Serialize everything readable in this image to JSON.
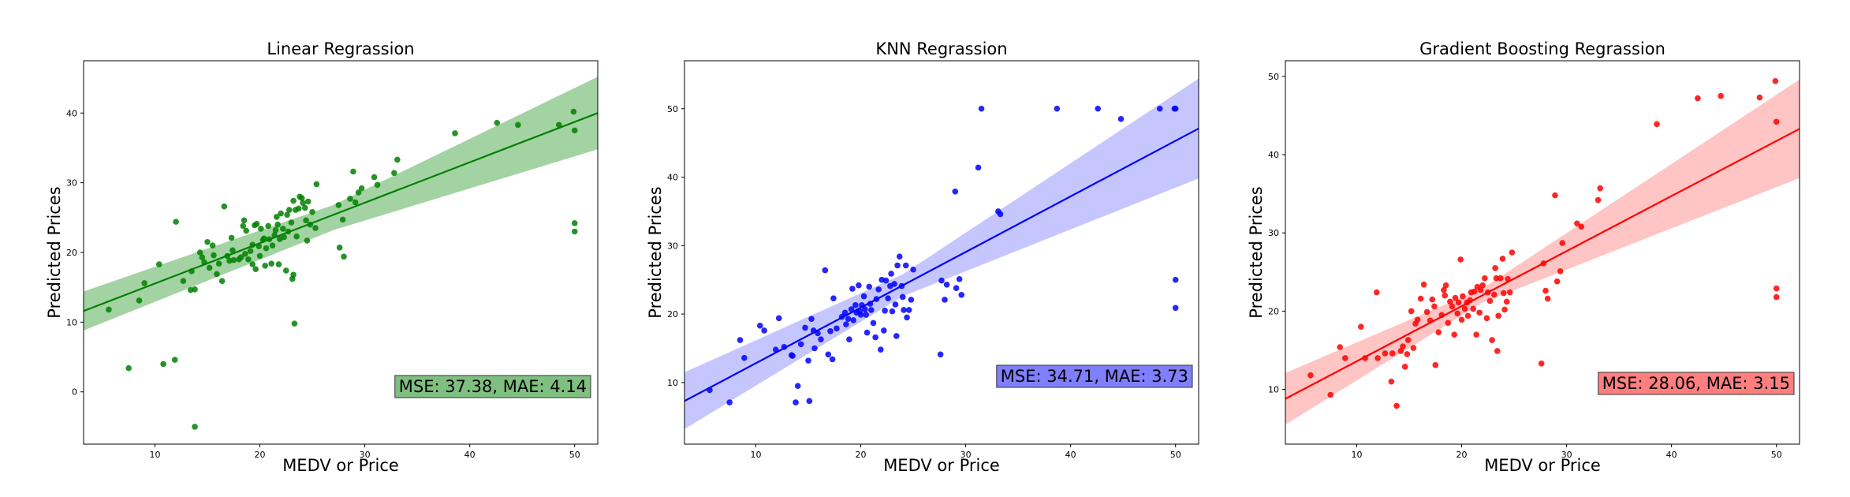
{
  "chart_data": [
    {
      "type": "scatter",
      "title": "Linear Regrassion",
      "xlabel": "MEDV or Price",
      "ylabel": "Predicted Prices",
      "xlim": [
        3.2,
        52.2
      ],
      "ylim": [
        -7.5,
        47.5
      ],
      "xticks": [
        10,
        20,
        30,
        40,
        50
      ],
      "yticks": [
        0,
        10,
        20,
        30,
        40
      ],
      "color": "#008000",
      "fill_color": "#a3d3a3",
      "annotation": "MSE: 37.38, MAE: 4.14",
      "annotation_bg": "#7fbf7f",
      "fit_line": {
        "x": [
          3.2,
          52.2
        ],
        "y": [
          11.6,
          40.0
        ]
      },
      "ci_band": {
        "x": [
          3.2,
          27,
          52.2
        ],
        "upper": [
          14.4,
          26.8,
          45.2
        ],
        "lower": [
          8.8,
          23.2,
          34.8
        ]
      },
      "points": [
        [
          5.6,
          11.8
        ],
        [
          7.5,
          3.4
        ],
        [
          8.5,
          13.1
        ],
        [
          9.0,
          15.6
        ],
        [
          10.4,
          18.3
        ],
        [
          10.8,
          4.0
        ],
        [
          11.9,
          4.6
        ],
        [
          12.0,
          24.4
        ],
        [
          12.7,
          15.9
        ],
        [
          13.4,
          14.6
        ],
        [
          13.5,
          17.3
        ],
        [
          13.8,
          14.7
        ],
        [
          13.8,
          -5.0
        ],
        [
          14.3,
          20.0
        ],
        [
          14.5,
          19.3
        ],
        [
          14.7,
          18.6
        ],
        [
          15.0,
          21.5
        ],
        [
          15.2,
          17.8
        ],
        [
          15.5,
          21.0
        ],
        [
          15.6,
          19.6
        ],
        [
          15.9,
          16.9
        ],
        [
          16.1,
          18.4
        ],
        [
          16.4,
          15.9
        ],
        [
          16.6,
          26.6
        ],
        [
          16.9,
          19.5
        ],
        [
          17.1,
          18.8
        ],
        [
          17.3,
          22.1
        ],
        [
          17.4,
          20.3
        ],
        [
          17.5,
          18.9
        ],
        [
          18.0,
          19.0
        ],
        [
          18.2,
          19.3
        ],
        [
          18.4,
          23.8
        ],
        [
          18.5,
          24.6
        ],
        [
          18.6,
          19.8
        ],
        [
          18.7,
          23.1
        ],
        [
          18.9,
          19.0
        ],
        [
          19.1,
          20.2
        ],
        [
          19.3,
          21.1
        ],
        [
          19.3,
          18.3
        ],
        [
          19.5,
          23.9
        ],
        [
          19.6,
          17.6
        ],
        [
          19.7,
          24.1
        ],
        [
          19.9,
          20.9
        ],
        [
          20.0,
          19.5
        ],
        [
          20.1,
          23.4
        ],
        [
          20.3,
          21.8
        ],
        [
          20.4,
          22.0
        ],
        [
          20.5,
          18.1
        ],
        [
          20.6,
          20.6
        ],
        [
          20.8,
          23.8
        ],
        [
          20.9,
          21.9
        ],
        [
          21.1,
          18.4
        ],
        [
          21.2,
          21.0
        ],
        [
          21.4,
          22.5
        ],
        [
          21.5,
          23.2
        ],
        [
          21.6,
          25.1
        ],
        [
          21.7,
          24.0
        ],
        [
          21.8,
          18.3
        ],
        [
          21.9,
          21.9
        ],
        [
          22.0,
          25.6
        ],
        [
          22.2,
          23.4
        ],
        [
          22.3,
          22.2
        ],
        [
          22.5,
          17.4
        ],
        [
          22.6,
          25.4
        ],
        [
          22.7,
          23.0
        ],
        [
          22.8,
          26.1
        ],
        [
          23.0,
          24.3
        ],
        [
          23.1,
          16.2
        ],
        [
          23.2,
          27.4
        ],
        [
          23.2,
          16.8
        ],
        [
          23.3,
          9.8
        ],
        [
          23.4,
          26.1
        ],
        [
          23.5,
          22.3
        ],
        [
          23.7,
          26.3
        ],
        [
          23.8,
          28.0
        ],
        [
          24.0,
          27.8
        ],
        [
          24.1,
          27.1
        ],
        [
          24.3,
          26.4
        ],
        [
          24.4,
          24.6
        ],
        [
          24.5,
          21.7
        ],
        [
          24.6,
          27.3
        ],
        [
          24.8,
          24.0
        ],
        [
          25.0,
          25.8
        ],
        [
          25.3,
          23.5
        ],
        [
          25.4,
          29.8
        ],
        [
          27.5,
          26.8
        ],
        [
          27.6,
          20.7
        ],
        [
          27.9,
          24.7
        ],
        [
          28.0,
          19.4
        ],
        [
          28.6,
          27.7
        ],
        [
          28.9,
          31.6
        ],
        [
          29.1,
          27.2
        ],
        [
          29.4,
          28.6
        ],
        [
          29.7,
          29.2
        ],
        [
          30.9,
          30.8
        ],
        [
          31.2,
          29.7
        ],
        [
          32.8,
          31.4
        ],
        [
          33.1,
          33.3
        ],
        [
          38.6,
          37.1
        ],
        [
          42.6,
          38.6
        ],
        [
          44.6,
          38.3
        ],
        [
          48.5,
          38.3
        ],
        [
          49.9,
          40.2
        ],
        [
          50.0,
          37.5
        ],
        [
          50.0,
          24.2
        ],
        [
          50.0,
          23.0
        ]
      ]
    },
    {
      "type": "scatter",
      "title": "KNN Regrassion",
      "xlabel": "MEDV or Price",
      "ylabel": "Predicted Prices",
      "xlim": [
        3.2,
        52.2
      ],
      "ylim": [
        1.0,
        57.0
      ],
      "xticks": [
        10,
        20,
        30,
        40,
        50
      ],
      "yticks": [
        10,
        20,
        30,
        40,
        50
      ],
      "color": "#0000ff",
      "fill_color": "#c6c6ff",
      "annotation": "MSE: 34.71, MAE: 3.73",
      "annotation_bg": "#7f7fff",
      "fit_line": {
        "x": [
          3.2,
          52.2
        ],
        "y": [
          7.3,
          47.1
        ]
      },
      "ci_band": {
        "x": [
          3.2,
          24,
          52.2
        ],
        "upper": [
          11.5,
          25.8,
          54.4
        ],
        "lower": [
          3.2,
          22.6,
          39.8
        ]
      },
      "points": [
        [
          5.6,
          8.9
        ],
        [
          7.5,
          7.1
        ],
        [
          8.5,
          16.2
        ],
        [
          8.9,
          13.6
        ],
        [
          10.4,
          18.3
        ],
        [
          10.8,
          17.6
        ],
        [
          11.9,
          14.8
        ],
        [
          12.2,
          19.4
        ],
        [
          12.7,
          15.2
        ],
        [
          13.4,
          14.0
        ],
        [
          13.5,
          13.9
        ],
        [
          13.8,
          7.1
        ],
        [
          14.0,
          9.5
        ],
        [
          14.3,
          15.6
        ],
        [
          14.7,
          18.0
        ],
        [
          15.0,
          13.2
        ],
        [
          15.1,
          7.3
        ],
        [
          15.3,
          19.3
        ],
        [
          15.5,
          17.6
        ],
        [
          15.6,
          15.0
        ],
        [
          15.9,
          17.2
        ],
        [
          16.2,
          16.3
        ],
        [
          16.6,
          26.4
        ],
        [
          16.9,
          14.1
        ],
        [
          17.1,
          17.5
        ],
        [
          17.3,
          13.4
        ],
        [
          17.4,
          22.3
        ],
        [
          17.7,
          17.9
        ],
        [
          18.2,
          19.6
        ],
        [
          18.5,
          20.2
        ],
        [
          18.6,
          18.5
        ],
        [
          18.8,
          19.3
        ],
        [
          18.9,
          16.3
        ],
        [
          19.1,
          20.7
        ],
        [
          19.2,
          23.7
        ],
        [
          19.3,
          19.1
        ],
        [
          19.5,
          21.3
        ],
        [
          19.6,
          20.2
        ],
        [
          19.8,
          24.2
        ],
        [
          19.9,
          20.4
        ],
        [
          20.0,
          19.9
        ],
        [
          20.1,
          21.3
        ],
        [
          20.3,
          22.6
        ],
        [
          20.4,
          20.7
        ],
        [
          20.5,
          19.9
        ],
        [
          20.6,
          17.3
        ],
        [
          20.8,
          24.0
        ],
        [
          20.9,
          21.5
        ],
        [
          21.0,
          20.6
        ],
        [
          21.2,
          18.7
        ],
        [
          21.4,
          16.6
        ],
        [
          21.5,
          22.2
        ],
        [
          21.7,
          23.6
        ],
        [
          21.9,
          14.8
        ],
        [
          22.0,
          25.0
        ],
        [
          22.2,
          17.6
        ],
        [
          22.3,
          20.5
        ],
        [
          22.4,
          24.9
        ],
        [
          22.6,
          22.3
        ],
        [
          22.8,
          24.1
        ],
        [
          22.9,
          25.9
        ],
        [
          23.0,
          20.4
        ],
        [
          23.2,
          24.4
        ],
        [
          23.3,
          21.4
        ],
        [
          23.4,
          16.8
        ],
        [
          23.5,
          27.1
        ],
        [
          23.7,
          28.4
        ],
        [
          23.9,
          24.1
        ],
        [
          24.0,
          22.5
        ],
        [
          24.1,
          20.6
        ],
        [
          24.3,
          27.1
        ],
        [
          24.4,
          19.5
        ],
        [
          24.6,
          20.6
        ],
        [
          24.8,
          22.1
        ],
        [
          25.0,
          26.5
        ],
        [
          27.6,
          14.1
        ],
        [
          27.7,
          24.9
        ],
        [
          28.0,
          22.1
        ],
        [
          28.2,
          24.3
        ],
        [
          29.0,
          37.9
        ],
        [
          29.1,
          23.8
        ],
        [
          29.4,
          25.1
        ],
        [
          29.6,
          22.8
        ],
        [
          31.2,
          41.4
        ],
        [
          31.5,
          50.0
        ],
        [
          33.1,
          35.0
        ],
        [
          33.3,
          34.6
        ],
        [
          38.7,
          50.0
        ],
        [
          42.6,
          50.0
        ],
        [
          44.8,
          48.5
        ],
        [
          48.5,
          50.0
        ],
        [
          49.9,
          50.0
        ],
        [
          50.0,
          50.0
        ],
        [
          50.0,
          25.0
        ],
        [
          50.0,
          20.9
        ]
      ]
    },
    {
      "type": "scatter",
      "title": "Gradient Boosting Regrassion",
      "xlabel": "MEDV or Price",
      "ylabel": "Predicted Prices",
      "xlim": [
        3.2,
        52.2
      ],
      "ylim": [
        3.0,
        52.0
      ],
      "xticks": [
        10,
        20,
        30,
        40,
        50
      ],
      "yticks": [
        10,
        20,
        30,
        40,
        50
      ],
      "color": "#ff0000",
      "fill_color": "#ffc4c4",
      "annotation": "MSE: 28.06, MAE: 3.15",
      "annotation_bg": "#ff7f7f",
      "fit_line": {
        "x": [
          3.2,
          52.2
        ],
        "y": [
          8.8,
          43.3
        ]
      },
      "ci_band": {
        "x": [
          3.2,
          22,
          52.2
        ],
        "upper": [
          12.1,
          22.9,
          49.6
        ],
        "lower": [
          5.5,
          21.1,
          37.0
        ]
      },
      "points": [
        [
          5.6,
          11.8
        ],
        [
          7.5,
          9.3
        ],
        [
          8.4,
          15.4
        ],
        [
          8.9,
          14.0
        ],
        [
          10.4,
          18.0
        ],
        [
          10.8,
          14.0
        ],
        [
          11.9,
          22.4
        ],
        [
          12.0,
          14.0
        ],
        [
          12.7,
          14.6
        ],
        [
          13.3,
          11.0
        ],
        [
          13.4,
          14.6
        ],
        [
          13.8,
          7.9
        ],
        [
          14.2,
          14.9
        ],
        [
          14.4,
          15.5
        ],
        [
          14.6,
          12.9
        ],
        [
          14.8,
          14.5
        ],
        [
          14.9,
          16.3
        ],
        [
          15.2,
          20.0
        ],
        [
          15.4,
          15.3
        ],
        [
          15.6,
          18.4
        ],
        [
          15.8,
          18.9
        ],
        [
          16.1,
          21.6
        ],
        [
          16.4,
          23.4
        ],
        [
          16.7,
          19.9
        ],
        [
          17.0,
          18.8
        ],
        [
          17.2,
          21.5
        ],
        [
          17.4,
          20.6
        ],
        [
          17.5,
          13.1
        ],
        [
          17.8,
          17.3
        ],
        [
          18.1,
          19.5
        ],
        [
          18.3,
          22.7
        ],
        [
          18.4,
          22.0
        ],
        [
          18.5,
          23.3
        ],
        [
          18.7,
          18.5
        ],
        [
          18.9,
          21.2
        ],
        [
          19.1,
          20.6
        ],
        [
          19.3,
          17.0
        ],
        [
          19.4,
          21.7
        ],
        [
          19.6,
          19.7
        ],
        [
          19.7,
          21.1
        ],
        [
          19.9,
          26.6
        ],
        [
          20.0,
          18.9
        ],
        [
          20.1,
          21.9
        ],
        [
          20.3,
          20.3
        ],
        [
          20.5,
          21.1
        ],
        [
          20.6,
          19.4
        ],
        [
          20.8,
          21.4
        ],
        [
          20.9,
          22.4
        ],
        [
          21.1,
          20.3
        ],
        [
          21.2,
          22.5
        ],
        [
          21.4,
          17.0
        ],
        [
          21.5,
          23.1
        ],
        [
          21.7,
          19.8
        ],
        [
          21.8,
          22.7
        ],
        [
          22.0,
          23.3
        ],
        [
          22.2,
          24.2
        ],
        [
          22.4,
          19.1
        ],
        [
          22.5,
          22.4
        ],
        [
          22.7,
          21.3
        ],
        [
          22.9,
          16.3
        ],
        [
          23.1,
          22.1
        ],
        [
          23.2,
          25.5
        ],
        [
          23.3,
          24.2
        ],
        [
          23.4,
          14.9
        ],
        [
          23.5,
          19.4
        ],
        [
          23.7,
          24.2
        ],
        [
          23.9,
          26.7
        ],
        [
          24.0,
          22.3
        ],
        [
          24.1,
          20.2
        ],
        [
          24.3,
          21.2
        ],
        [
          24.4,
          24.1
        ],
        [
          24.6,
          22.4
        ],
        [
          24.8,
          27.5
        ],
        [
          27.6,
          13.3
        ],
        [
          27.8,
          26.1
        ],
        [
          28.0,
          22.6
        ],
        [
          28.2,
          21.6
        ],
        [
          28.9,
          34.8
        ],
        [
          29.1,
          23.8
        ],
        [
          29.4,
          25.1
        ],
        [
          29.6,
          28.7
        ],
        [
          31.0,
          31.2
        ],
        [
          31.4,
          30.8
        ],
        [
          33.0,
          34.2
        ],
        [
          33.2,
          35.7
        ],
        [
          38.6,
          43.9
        ],
        [
          42.5,
          47.2
        ],
        [
          44.7,
          47.5
        ],
        [
          48.4,
          47.3
        ],
        [
          49.9,
          49.4
        ],
        [
          50.0,
          44.2
        ],
        [
          50.0,
          22.9
        ],
        [
          50.0,
          21.8
        ]
      ]
    }
  ]
}
